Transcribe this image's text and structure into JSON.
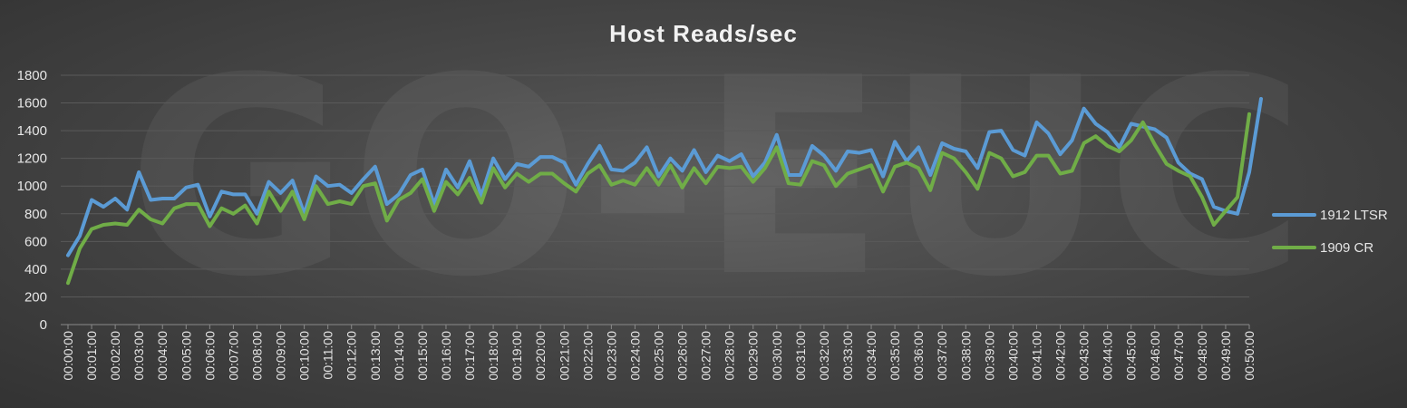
{
  "chart_data": {
    "type": "line",
    "title": "Host Reads/sec",
    "watermark": "GO-EUC",
    "xlabel": "",
    "ylabel": "",
    "ylim": [
      0,
      1800
    ],
    "yticks": [
      0,
      200,
      400,
      600,
      800,
      1000,
      1200,
      1400,
      1600,
      1800
    ],
    "xticks": [
      "00:00:00",
      "00:01:00",
      "00:02:00",
      "00:03:00",
      "00:04:00",
      "00:05:00",
      "00:06:00",
      "00:07:00",
      "00:08:00",
      "00:09:00",
      "00:10:00",
      "00:11:00",
      "00:12:00",
      "00:13:00",
      "00:14:00",
      "00:15:00",
      "00:16:00",
      "00:17:00",
      "00:18:00",
      "00:19:00",
      "00:20:00",
      "00:21:00",
      "00:22:00",
      "00:23:00",
      "00:24:00",
      "00:25:00",
      "00:26:00",
      "00:27:00",
      "00:28:00",
      "00:29:00",
      "00:30:00",
      "00:31:00",
      "00:32:00",
      "00:33:00",
      "00:34:00",
      "00:35:00",
      "00:36:00",
      "00:37:00",
      "00:38:00",
      "00:39:00",
      "00:40:00",
      "00:41:00",
      "00:42:00",
      "00:43:00",
      "00:44:00",
      "00:45:00",
      "00:46:00",
      "00:47:00",
      "00:48:00",
      "00:49:00",
      "00:50:00"
    ],
    "points_per_tick": 2,
    "grid": true,
    "legend": "right",
    "series": [
      {
        "name": "1912 LTSR",
        "color": "#5b9bd5",
        "values": [
          500,
          640,
          900,
          850,
          910,
          830,
          1100,
          900,
          910,
          910,
          990,
          1010,
          780,
          960,
          940,
          940,
          800,
          1030,
          950,
          1040,
          800,
          1070,
          1000,
          1010,
          950,
          1050,
          1140,
          870,
          940,
          1080,
          1120,
          870,
          1120,
          990,
          1180,
          930,
          1200,
          1050,
          1160,
          1140,
          1210,
          1210,
          1170,
          1010,
          1160,
          1290,
          1120,
          1110,
          1170,
          1280,
          1070,
          1200,
          1110,
          1260,
          1100,
          1220,
          1180,
          1230,
          1070,
          1170,
          1370,
          1080,
          1080,
          1290,
          1220,
          1110,
          1250,
          1240,
          1260,
          1070,
          1320,
          1180,
          1280,
          1080,
          1310,
          1270,
          1250,
          1130,
          1390,
          1400,
          1260,
          1220,
          1460,
          1380,
          1230,
          1330,
          1560,
          1450,
          1390,
          1280,
          1450,
          1430,
          1410,
          1350,
          1170,
          1090,
          1050,
          850,
          820,
          800,
          1100,
          1630
        ]
      },
      {
        "name": "1909 CR",
        "color": "#70ad47",
        "values": [
          300,
          550,
          690,
          720,
          730,
          720,
          830,
          760,
          730,
          840,
          870,
          870,
          710,
          840,
          800,
          860,
          730,
          960,
          820,
          960,
          760,
          1000,
          870,
          890,
          870,
          1000,
          1020,
          750,
          900,
          950,
          1050,
          820,
          1030,
          940,
          1060,
          880,
          1130,
          990,
          1090,
          1030,
          1090,
          1090,
          1020,
          960,
          1090,
          1150,
          1010,
          1040,
          1010,
          1130,
          1010,
          1150,
          990,
          1130,
          1020,
          1140,
          1130,
          1140,
          1030,
          1130,
          1280,
          1020,
          1010,
          1180,
          1150,
          1000,
          1090,
          1120,
          1150,
          960,
          1140,
          1170,
          1130,
          970,
          1240,
          1200,
          1100,
          980,
          1240,
          1200,
          1070,
          1100,
          1220,
          1220,
          1090,
          1110,
          1310,
          1360,
          1290,
          1250,
          1330,
          1460,
          1300,
          1160,
          1110,
          1070,
          920,
          720,
          820,
          920,
          1520
        ]
      }
    ]
  }
}
